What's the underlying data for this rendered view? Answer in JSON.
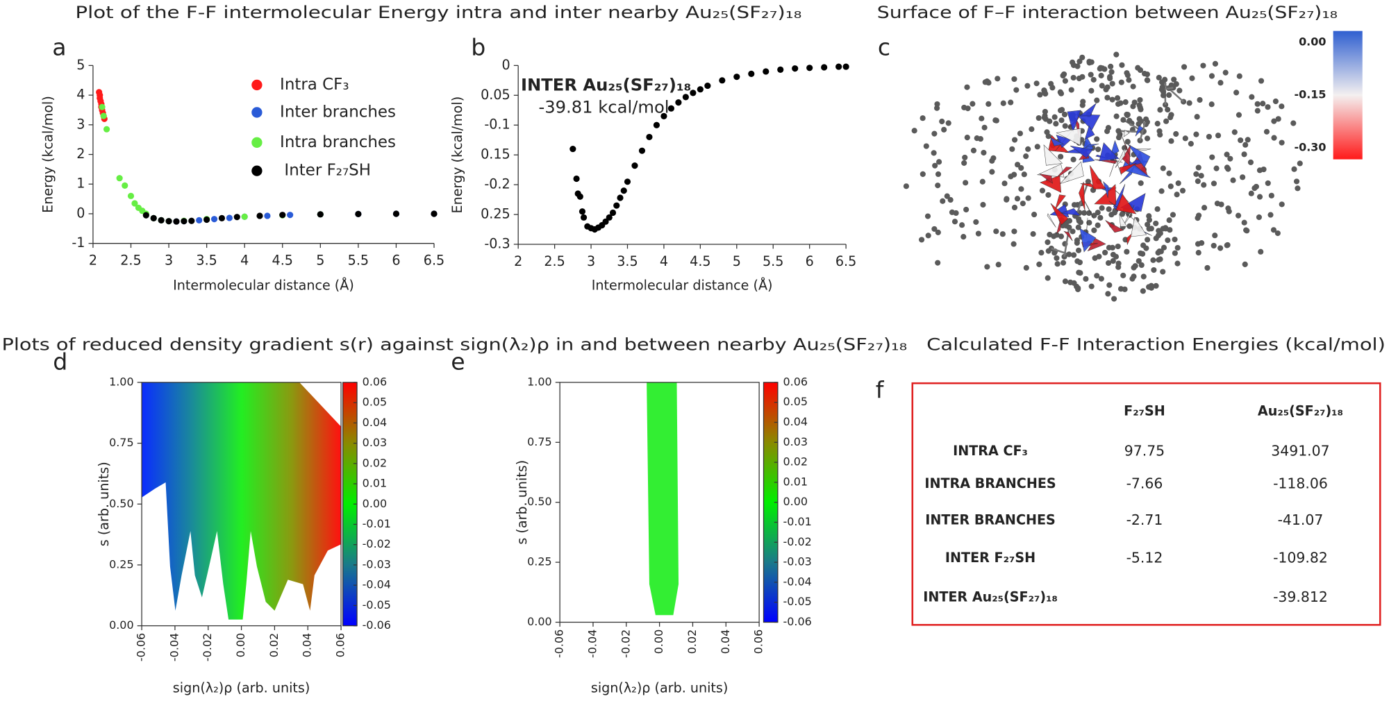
{
  "titles": {
    "energy": "Plot of the F-F intermolecular Energy intra and inter nearby Au₂₅(SF₂₇)₁₈",
    "surface": "Surface of F–F interaction between Au₂₅(SF₂₇)₁₈",
    "density": "Plots of reduced density gradient s(r) against sign(λ₂)ρ in and between nearby Au₂₅(SF₂₇)₁₈",
    "table": "Calculated F-F Interaction  Energies (kcal/mol)"
  },
  "panels": [
    "a",
    "b",
    "c",
    "d",
    "e",
    "f"
  ],
  "chart_data": [
    {
      "type": "scatter",
      "xlabel": "Intermolecular distance (Å)",
      "ylabel": "Energy (kcal/mol)",
      "xlim": [
        2,
        6.5
      ],
      "ylim": [
        -1,
        5
      ],
      "xticks": [
        2,
        2.5,
        3,
        3.5,
        4,
        4.5,
        5,
        5.5,
        6,
        6.5
      ],
      "yticks": [
        -1,
        0,
        1,
        2,
        3,
        4,
        5
      ],
      "legend": "upper right",
      "series": [
        {
          "name": "Intra CF₃",
          "color": "#ff1a1a",
          "x": [
            2.08,
            2.09,
            2.09,
            2.1,
            2.11,
            2.11,
            2.12,
            2.13,
            2.14,
            2.15
          ],
          "values": [
            4.1,
            4.0,
            3.9,
            3.8,
            3.7,
            3.6,
            3.5,
            3.4,
            3.3,
            3.2
          ]
        },
        {
          "name": "Inter branches",
          "color": "#2a5bd7",
          "x": [
            2.8,
            2.9,
            3.0,
            3.1,
            3.2,
            3.4,
            3.6,
            3.8,
            4.0,
            4.3,
            4.6,
            5.0,
            5.5,
            6.0,
            6.5
          ],
          "values": [
            -0.15,
            -0.22,
            -0.25,
            -0.26,
            -0.25,
            -0.22,
            -0.18,
            -0.14,
            -0.1,
            -0.07,
            -0.04,
            -0.02,
            -0.01,
            0,
            0
          ]
        },
        {
          "name": "Intra branches",
          "color": "#66ee44",
          "x": [
            2.12,
            2.14,
            2.18,
            2.35,
            2.42,
            2.5,
            2.55,
            2.6,
            2.65,
            2.7,
            2.8,
            2.9,
            3.0,
            3.2,
            3.5,
            4.0,
            4.5,
            5.0
          ],
          "values": [
            3.6,
            3.3,
            2.85,
            1.2,
            0.95,
            0.6,
            0.35,
            0.2,
            0.1,
            0.0,
            -0.15,
            -0.22,
            -0.25,
            -0.24,
            -0.18,
            -0.1,
            -0.05,
            -0.02
          ]
        },
        {
          "name": "Inter F₂₇SH",
          "color": "#000000",
          "x": [
            2.7,
            2.8,
            2.9,
            3.0,
            3.1,
            3.2,
            3.3,
            3.5,
            3.7,
            3.9,
            4.2,
            4.5,
            5.0,
            5.5,
            6.0,
            6.5
          ],
          "values": [
            -0.05,
            -0.15,
            -0.22,
            -0.25,
            -0.26,
            -0.25,
            -0.24,
            -0.2,
            -0.15,
            -0.11,
            -0.07,
            -0.04,
            -0.02,
            -0.01,
            0,
            0
          ]
        }
      ]
    },
    {
      "type": "scatter",
      "xlabel": "Intermolecular distance (Å)",
      "ylabel": "Energy (kcal/mol)",
      "xlim": [
        2,
        6.5
      ],
      "ylim": [
        -0.3,
        0
      ],
      "xticks": [
        2,
        2.5,
        3,
        3.5,
        4,
        4.5,
        5,
        5.5,
        6,
        6.5
      ],
      "yticks": [
        0,
        {
          "value": -0.05,
          "label": "0.05"
        },
        -0.1,
        {
          "value": -0.15,
          "label": "0.15"
        },
        -0.2,
        {
          "value": -0.25,
          "label": "0.25"
        },
        -0.3
      ],
      "annotations": [
        "INTER Au₂₅(SF₂₇)₁₈",
        "-39.81 kcal/mol"
      ],
      "series": [
        {
          "color": "#000000",
          "x": [
            2.75,
            2.8,
            2.82,
            2.85,
            2.88,
            2.9,
            2.95,
            3.0,
            3.05,
            3.1,
            3.15,
            3.2,
            3.25,
            3.3,
            3.35,
            3.4,
            3.45,
            3.5,
            3.6,
            3.7,
            3.8,
            3.9,
            4.0,
            4.1,
            4.2,
            4.3,
            4.4,
            4.5,
            4.6,
            4.8,
            5.0,
            5.2,
            5.4,
            5.6,
            5.8,
            6.0,
            6.2,
            6.4,
            6.5
          ],
          "values": [
            -0.14,
            -0.19,
            -0.215,
            -0.22,
            -0.245,
            -0.255,
            -0.27,
            -0.273,
            -0.275,
            -0.272,
            -0.268,
            -0.262,
            -0.255,
            -0.247,
            -0.235,
            -0.222,
            -0.21,
            -0.195,
            -0.168,
            -0.143,
            -0.12,
            -0.1,
            -0.085,
            -0.072,
            -0.062,
            -0.053,
            -0.046,
            -0.04,
            -0.034,
            -0.025,
            -0.019,
            -0.014,
            -0.01,
            -0.007,
            -0.005,
            -0.004,
            -0.003,
            -0.002,
            -0.002
          ]
        }
      ]
    },
    {
      "type": "image",
      "colorbar": {
        "lim": [
          -0.3,
          0
        ],
        "ticks": [
          {
            "value": 0,
            "label": "0.00"
          },
          -0.15,
          {
            "value": -0.3,
            "label": "-0.30"
          }
        ]
      }
    },
    {
      "type": "density",
      "xlabel": "sign(λ₂)ρ (arb. units)",
      "ylabel": "s (arb. units)",
      "xlim": [
        -0.06,
        0.06
      ],
      "ylim": [
        0,
        1
      ],
      "xticks": [
        -0.06,
        -0.04,
        -0.02,
        {
          "value": 0,
          "label": "0.00"
        },
        0.02,
        0.04,
        0.06
      ],
      "yticks": [
        {
          "value": 0,
          "label": "0.00"
        },
        0.25,
        {
          "value": 0.5,
          "label": "0.50"
        },
        0.75,
        {
          "value": 1,
          "label": "1.00"
        }
      ],
      "colorbar": {
        "lim": [
          -0.06,
          0.06
        ],
        "ticks": [
          0.06,
          0.05,
          0.04,
          0.03,
          0.02,
          0.01,
          {
            "value": 0,
            "label": "0.00"
          },
          -0.01,
          -0.02,
          -0.03,
          -0.04,
          -0.05,
          -0.06
        ]
      }
    },
    {
      "type": "density",
      "xlabel": "sign(λ₂)ρ (arb. units)",
      "ylabel": "s (arb. units)",
      "xlim": [
        -0.06,
        0.06
      ],
      "ylim": [
        0,
        1
      ],
      "xticks": [
        -0.06,
        -0.04,
        -0.02,
        {
          "value": 0,
          "label": "0.00"
        },
        0.02,
        0.04,
        0.06
      ],
      "yticks": [
        {
          "value": 0,
          "label": "0.00"
        },
        0.25,
        {
          "value": 0.5,
          "label": "0.50"
        },
        0.75,
        {
          "value": 1,
          "label": "1.00"
        }
      ],
      "colorbar": {
        "lim": [
          -0.06,
          0.06
        ],
        "ticks": [
          0.06,
          0.05,
          0.04,
          0.03,
          0.02,
          0.01,
          {
            "value": 0,
            "label": "0.00"
          },
          -0.01,
          -0.02,
          -0.03,
          -0.04,
          -0.05,
          -0.06
        ]
      }
    }
  ],
  "table": {
    "columns": [
      "F₂₇SH",
      "Au₂₅(SF₂₇)₁₈"
    ],
    "rows": [
      {
        "label": "INTRA CF₃",
        "cells": [
          97.75,
          3491.07
        ]
      },
      {
        "label": "INTRA BRANCHES",
        "cells": [
          -7.66,
          -118.06
        ]
      },
      {
        "label": "INTER BRANCHES",
        "cells": [
          -2.71,
          -41.07
        ]
      },
      {
        "label": "INTER F₂₇SH",
        "cells": [
          -5.12,
          -109.82
        ]
      },
      {
        "label": "INTER Au₂₅(SF₂₇)₁₈",
        "cells": [
          null,
          -39.812
        ]
      }
    ]
  }
}
